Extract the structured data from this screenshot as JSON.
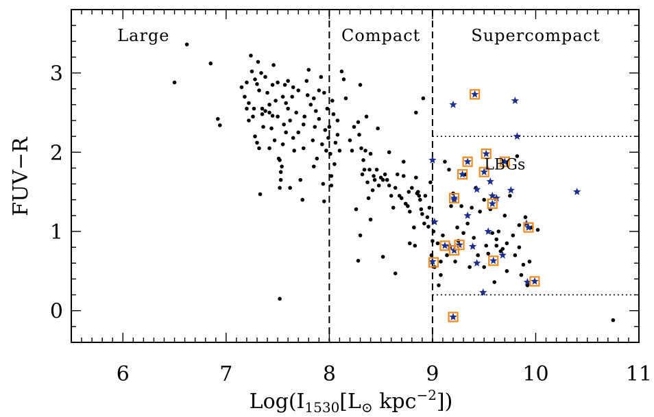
{
  "chart_data": {
    "type": "scatter",
    "title": "",
    "xlabel_main": "Log(I",
    "xlabel_sub": "1530",
    "xlabel_bracket": "[L",
    "xlabel_sun": "⊙",
    "xlabel_unit": " kpc",
    "xlabel_sup": "−2",
    "xlabel_end": "])",
    "ylabel": "FUV−R",
    "xlim": [
      5.5,
      11
    ],
    "ylim": [
      -0.4,
      3.8
    ],
    "x_ticks": [
      {
        "value": 6,
        "label": "6"
      },
      {
        "value": 7,
        "label": "7"
      },
      {
        "value": 8,
        "label": "8"
      },
      {
        "value": 9,
        "label": "9"
      },
      {
        "value": 10,
        "label": "10"
      },
      {
        "value": 11,
        "label": "11"
      }
    ],
    "y_ticks": [
      {
        "value": 0,
        "label": "0"
      },
      {
        "value": 1,
        "label": "1"
      },
      {
        "value": 2,
        "label": "2"
      },
      {
        "value": 3,
        "label": "3"
      }
    ],
    "regions": [
      {
        "label": "Large",
        "x": 6.2
      },
      {
        "label": "Compact",
        "x": 8.5
      },
      {
        "label": "Supercompact",
        "x": 10.0
      }
    ],
    "dividers": [
      8,
      9
    ],
    "lbg_region": {
      "label": "LBGs",
      "x_start": 9,
      "y_min": 0.2,
      "y_max": 2.2,
      "label_x": 9.7,
      "label_y": 1.85
    },
    "series": [
      {
        "marker": "dot",
        "points": [
          [
            6.5,
            2.88
          ],
          [
            6.62,
            3.36
          ],
          [
            6.85,
            3.12
          ],
          [
            6.92,
            2.42
          ],
          [
            6.94,
            2.34
          ],
          [
            7.15,
            2.82
          ],
          [
            7.18,
            2.7
          ],
          [
            7.2,
            2.88
          ],
          [
            7.22,
            2.62
          ],
          [
            7.24,
            3.22
          ],
          [
            7.25,
            3.02
          ],
          [
            7.27,
            2.55
          ],
          [
            7.28,
            2.92
          ],
          [
            7.3,
            2.86
          ],
          [
            7.31,
            3.14
          ],
          [
            7.32,
            2.78
          ],
          [
            7.34,
            3.0
          ],
          [
            7.35,
            2.48
          ],
          [
            7.2,
            2.55
          ],
          [
            7.22,
            2.4
          ],
          [
            7.26,
            2.45
          ],
          [
            7.28,
            2.2
          ],
          [
            7.3,
            2.12
          ],
          [
            7.32,
            2.05
          ],
          [
            7.33,
            1.47
          ],
          [
            7.35,
            2.55
          ],
          [
            7.36,
            2.32
          ],
          [
            7.38,
            2.52
          ],
          [
            7.4,
            2.75
          ],
          [
            7.42,
            2.6
          ],
          [
            7.42,
            2.5
          ],
          [
            7.44,
            2.3
          ],
          [
            7.45,
            2.46
          ],
          [
            7.46,
            3.1
          ],
          [
            7.47,
            2.15
          ],
          [
            7.48,
            2.65
          ],
          [
            7.5,
            2.88
          ],
          [
            7.5,
            2.45
          ],
          [
            7.51,
            1.92
          ],
          [
            7.52,
            1.9
          ],
          [
            7.52,
            1.55
          ],
          [
            7.53,
            1.65
          ],
          [
            7.53,
            1.75
          ],
          [
            7.54,
            1.82
          ],
          [
            7.55,
            2.1
          ],
          [
            7.56,
            2.35
          ],
          [
            7.57,
            2.85
          ],
          [
            7.58,
            2.62
          ],
          [
            7.58,
            2.25
          ],
          [
            7.6,
            2.9
          ],
          [
            7.6,
            2.55
          ],
          [
            7.62,
            2.4
          ],
          [
            7.64,
            2.7
          ],
          [
            7.65,
            2.18
          ],
          [
            7.66,
            2.02
          ],
          [
            7.68,
            2.5
          ],
          [
            7.7,
            2.78
          ],
          [
            7.7,
            2.25
          ],
          [
            7.72,
            1.65
          ],
          [
            7.74,
            1.4
          ],
          [
            7.75,
            2.05
          ],
          [
            7.76,
            2.45
          ],
          [
            7.78,
            2.9
          ],
          [
            7.79,
            2.72
          ],
          [
            7.8,
            3.04
          ],
          [
            7.82,
            2.6
          ],
          [
            7.84,
            2.15
          ],
          [
            7.85,
            1.82
          ],
          [
            7.86,
            2.32
          ],
          [
            7.87,
            2.52
          ],
          [
            7.88,
            1.92
          ],
          [
            7.9,
            2.78
          ],
          [
            7.9,
            2.42
          ],
          [
            7.92,
            2.95
          ],
          [
            7.93,
            2.1
          ],
          [
            7.94,
            1.6
          ],
          [
            7.95,
            1.38
          ],
          [
            7.96,
            2.28
          ],
          [
            7.97,
            2.02
          ],
          [
            7.98,
            2.55
          ],
          [
            7.99,
            2.18
          ],
          [
            8.0,
            2.32
          ],
          [
            8.01,
            1.98
          ],
          [
            8.02,
            1.58
          ],
          [
            8.03,
            2.65
          ],
          [
            8.04,
            2.48
          ],
          [
            8.05,
            1.85
          ],
          [
            8.06,
            2.12
          ],
          [
            8.08,
            2.22
          ],
          [
            8.08,
            2.4
          ],
          [
            8.1,
            2.02
          ],
          [
            8.12,
            3.02
          ],
          [
            8.14,
            2.92
          ],
          [
            8.16,
            2.68
          ],
          [
            7.38,
            2.95
          ],
          [
            7.45,
            2.85
          ],
          [
            7.55,
            2.7
          ],
          [
            7.65,
            2.82
          ],
          [
            7.75,
            2.35
          ],
          [
            7.85,
            2.68
          ],
          [
            7.95,
            2.75
          ],
          [
            8.02,
            1.7
          ],
          [
            7.42,
            2.05
          ],
          [
            7.62,
            1.55
          ],
          [
            7.52,
            0.15
          ],
          [
            8.2,
            2.15
          ],
          [
            8.22,
            2.02
          ],
          [
            8.24,
            2.32
          ],
          [
            8.26,
            1.28
          ],
          [
            8.28,
            2.38
          ],
          [
            8.29,
            2.22
          ],
          [
            8.3,
            2.85
          ],
          [
            8.31,
            2.05
          ],
          [
            8.32,
            1.72
          ],
          [
            8.33,
            1.9
          ],
          [
            8.34,
            1.78
          ],
          [
            8.35,
            2.02
          ],
          [
            8.36,
            2.45
          ],
          [
            8.37,
            1.62
          ],
          [
            8.38,
            1.42
          ],
          [
            8.39,
            1.78
          ],
          [
            8.4,
            1.98
          ],
          [
            8.42,
            1.52
          ],
          [
            8.43,
            1.7
          ],
          [
            8.44,
            1.65
          ],
          [
            8.46,
            1.78
          ],
          [
            8.47,
            2.3
          ],
          [
            8.48,
            1.58
          ],
          [
            8.5,
            1.68
          ],
          [
            8.52,
            1.65
          ],
          [
            8.54,
            1.72
          ],
          [
            8.56,
            1.65
          ],
          [
            8.58,
            1.58
          ],
          [
            8.6,
            1.45
          ],
          [
            8.62,
            1.3
          ],
          [
            8.64,
            1.55
          ],
          [
            8.66,
            1.72
          ],
          [
            8.68,
            1.45
          ],
          [
            8.7,
            1.42
          ],
          [
            8.72,
            1.88
          ],
          [
            8.74,
            1.35
          ],
          [
            8.76,
            1.32
          ],
          [
            8.77,
            1.5
          ],
          [
            8.78,
            1.25
          ],
          [
            8.8,
            1.55
          ],
          [
            8.82,
            1.05
          ],
          [
            8.83,
            0.82
          ],
          [
            8.84,
            1.68
          ],
          [
            8.85,
            1.48
          ],
          [
            8.86,
            1.5
          ],
          [
            8.87,
            1.45
          ],
          [
            8.88,
            1.4
          ],
          [
            8.89,
            1.28
          ],
          [
            8.9,
            1.22
          ],
          [
            8.91,
            2.68
          ],
          [
            8.92,
            1.1
          ],
          [
            8.93,
            1.45
          ],
          [
            8.95,
            1.18
          ],
          [
            8.96,
            1.06
          ],
          [
            8.97,
            1.3
          ],
          [
            8.98,
            1.62
          ],
          [
            8.99,
            0.7
          ],
          [
            9.0,
            0.88
          ],
          [
            9.01,
            1.0
          ],
          [
            9.02,
            0.55
          ],
          [
            8.28,
            0.63
          ],
          [
            8.52,
            0.68
          ],
          [
            8.64,
            0.47
          ],
          [
            8.78,
            0.85
          ],
          [
            8.4,
            1.15
          ],
          [
            8.58,
            2.0
          ],
          [
            8.72,
            1.7
          ],
          [
            8.84,
            2.5
          ],
          [
            8.3,
            0.95
          ],
          [
            9.05,
            0.85
          ],
          [
            9.06,
            0.32
          ],
          [
            9.08,
            0.62
          ],
          [
            9.1,
            0.95
          ],
          [
            9.12,
            1.88
          ],
          [
            9.14,
            0.7
          ],
          [
            9.16,
            1.78
          ],
          [
            9.18,
            1.32
          ],
          [
            9.2,
            1.48
          ],
          [
            9.22,
            0.62
          ],
          [
            9.25,
            0.88
          ],
          [
            9.28,
            1.32
          ],
          [
            9.3,
            0.98
          ],
          [
            9.32,
            1.72
          ],
          [
            9.34,
            1.1
          ],
          [
            9.36,
            0.55
          ],
          [
            9.4,
            0.92
          ],
          [
            9.42,
            1.55
          ],
          [
            9.44,
            0.7
          ],
          [
            9.46,
            1.25
          ],
          [
            9.5,
            1.4
          ],
          [
            9.52,
            0.82
          ],
          [
            9.54,
            0.72
          ],
          [
            9.56,
            1.28
          ],
          [
            9.58,
            0.98
          ],
          [
            9.6,
            0.36
          ],
          [
            9.62,
            0.82
          ],
          [
            9.64,
            1.0
          ],
          [
            9.66,
            0.75
          ],
          [
            9.68,
            0.78
          ],
          [
            9.7,
            1.2
          ],
          [
            9.72,
            0.85
          ],
          [
            9.75,
            1.45
          ],
          [
            9.78,
            0.95
          ],
          [
            9.8,
            0.7
          ],
          [
            9.82,
            1.95
          ],
          [
            9.84,
            1.08
          ],
          [
            9.86,
            0.45
          ],
          [
            9.88,
            0.58
          ],
          [
            9.9,
            1.18
          ],
          [
            9.92,
            0.32
          ],
          [
            9.94,
            0.62
          ],
          [
            9.96,
            1.05
          ],
          [
            10.02,
            1.02
          ],
          [
            9.08,
            0.45
          ],
          [
            9.24,
            1.05
          ],
          [
            9.38,
            1.3
          ],
          [
            9.5,
            0.55
          ],
          [
            9.62,
            0.9
          ],
          [
            9.72,
            0.5
          ],
          [
            9.84,
            0.8
          ],
          [
            10.75,
            -0.12
          ]
        ]
      },
      {
        "marker": "star",
        "points": [
          [
            9.0,
            1.9
          ],
          [
            9.02,
            1.12
          ],
          [
            9.0,
            0.62
          ],
          [
            9.2,
            2.6
          ],
          [
            9.41,
            2.73
          ],
          [
            9.8,
            2.65
          ],
          [
            9.82,
            2.2
          ],
          [
            10.4,
            1.5
          ],
          [
            9.21,
            1.4
          ],
          [
            9.34,
            1.2
          ],
          [
            9.39,
            0.81
          ],
          [
            9.43,
            1.53
          ],
          [
            9.43,
            0.6
          ],
          [
            9.49,
            0.23
          ],
          [
            9.54,
            1.0
          ],
          [
            9.56,
            1.63
          ],
          [
            9.58,
            1.45
          ],
          [
            9.62,
            1.42
          ],
          [
            9.68,
            0.7
          ],
          [
            9.76,
            1.52
          ],
          [
            9.91,
            1.1
          ],
          [
            9.92,
            0.36
          ],
          [
            9.34,
            1.88
          ],
          [
            9.52,
            1.98
          ],
          [
            9.5,
            1.75
          ],
          [
            9.29,
            1.72
          ],
          [
            9.2,
            -0.08
          ],
          [
            9.12,
            0.82
          ],
          [
            9.17,
            0.81
          ],
          [
            9.21,
            0.76
          ],
          [
            9.26,
            0.83
          ],
          [
            9.58,
            1.35
          ],
          [
            9.59,
            0.63
          ],
          [
            9.93,
            1.05
          ],
          [
            9.99,
            0.37
          ],
          [
            9.7,
            1.88
          ],
          [
            9.21,
            1.42
          ]
        ]
      },
      {
        "marker": "square",
        "points": [
          [
            9.41,
            2.73
          ],
          [
            9.52,
            1.98
          ],
          [
            9.34,
            1.88
          ],
          [
            9.7,
            1.88
          ],
          [
            9.5,
            1.75
          ],
          [
            9.29,
            1.72
          ],
          [
            9.21,
            1.42
          ],
          [
            9.58,
            1.35
          ],
          [
            9.93,
            1.05
          ],
          [
            9.12,
            0.82
          ],
          [
            9.21,
            0.76
          ],
          [
            9.26,
            0.83
          ],
          [
            9.01,
            0.61
          ],
          [
            9.59,
            0.63
          ],
          [
            9.99,
            0.37
          ],
          [
            9.2,
            -0.08
          ]
        ]
      }
    ]
  }
}
